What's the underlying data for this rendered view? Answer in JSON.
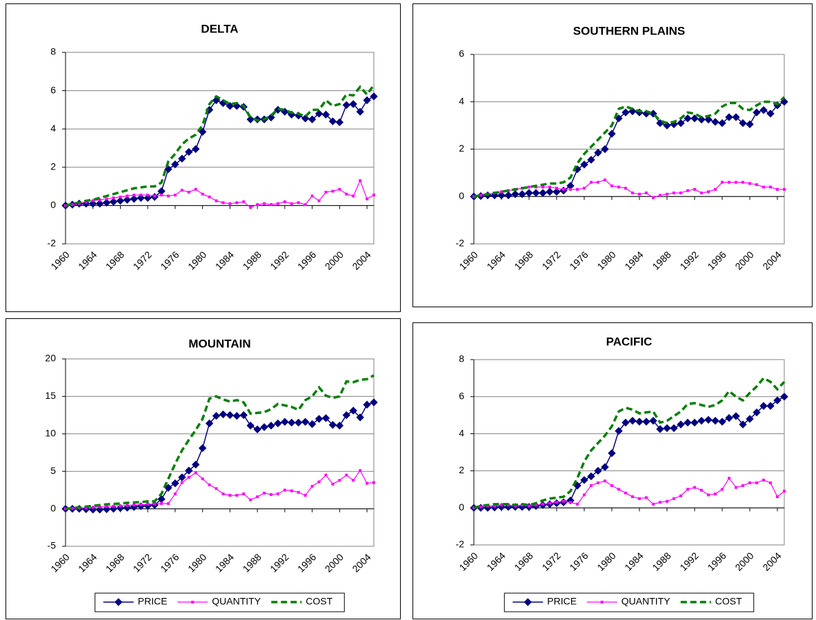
{
  "chart_data": [
    {
      "type": "line",
      "title": "DELTA",
      "x": [
        1960,
        1961,
        1962,
        1963,
        1964,
        1965,
        1966,
        1967,
        1968,
        1969,
        1970,
        1971,
        1972,
        1973,
        1974,
        1975,
        1976,
        1977,
        1978,
        1979,
        1980,
        1981,
        1982,
        1983,
        1984,
        1985,
        1986,
        1987,
        1988,
        1989,
        1990,
        1991,
        1992,
        1993,
        1994,
        1995,
        1996,
        1997,
        1998,
        1999,
        2000,
        2001,
        2002,
        2003,
        2004,
        2005
      ],
      "xlim": [
        1960,
        2005
      ],
      "xticks": [
        1960,
        1964,
        1968,
        1972,
        1976,
        1980,
        1984,
        1988,
        1992,
        1996,
        2000,
        2004
      ],
      "ylim": [
        -2,
        8
      ],
      "yticks": [
        -2,
        0,
        2,
        4,
        6,
        8
      ],
      "grid": true,
      "series": [
        {
          "name": "PRICE",
          "color": "#000080",
          "marker": "diamond",
          "values": [
            0,
            0.05,
            0.1,
            0.1,
            0.1,
            0.1,
            0.15,
            0.2,
            0.25,
            0.3,
            0.35,
            0.4,
            0.4,
            0.45,
            0.75,
            1.9,
            2.15,
            2.45,
            2.8,
            2.95,
            3.85,
            5.0,
            5.5,
            5.35,
            5.2,
            5.2,
            5.15,
            4.5,
            4.5,
            4.5,
            4.6,
            5.0,
            4.9,
            4.75,
            4.7,
            4.55,
            4.5,
            4.8,
            4.75,
            4.4,
            4.35,
            5.25,
            5.3,
            4.9,
            5.5,
            5.7
          ]
        },
        {
          "name": "QUANTITY",
          "color": "#ff00ff",
          "marker": "square",
          "values": [
            0,
            0.05,
            0.1,
            0.2,
            0.25,
            0.3,
            0.35,
            0.4,
            0.45,
            0.5,
            0.55,
            0.55,
            0.55,
            0.5,
            0.55,
            0.5,
            0.55,
            0.8,
            0.7,
            0.85,
            0.6,
            0.45,
            0.25,
            0.15,
            0.1,
            0.15,
            0.2,
            -0.1,
            0.05,
            0.1,
            0.05,
            0.1,
            0.2,
            0.1,
            0.15,
            0.05,
            0.5,
            0.25,
            0.7,
            0.75,
            0.85,
            0.6,
            0.5,
            1.3,
            0.35,
            0.55
          ]
        },
        {
          "name": "COST",
          "color": "#008000",
          "marker": "dash",
          "values": [
            0,
            0.1,
            0.15,
            0.25,
            0.3,
            0.4,
            0.5,
            0.6,
            0.7,
            0.8,
            0.9,
            0.95,
            1.0,
            1.0,
            1.2,
            2.3,
            2.7,
            3.2,
            3.5,
            3.7,
            4.2,
            5.3,
            5.7,
            5.5,
            5.3,
            5.35,
            5.2,
            4.6,
            4.45,
            4.5,
            4.7,
            5.05,
            5.0,
            4.85,
            4.8,
            4.65,
            5.0,
            5.0,
            5.5,
            5.2,
            5.3,
            5.8,
            5.75,
            6.2,
            5.8,
            6.3
          ]
        }
      ]
    },
    {
      "type": "line",
      "title": "SOUTHERN PLAINS",
      "x": [
        1960,
        1961,
        1962,
        1963,
        1964,
        1965,
        1966,
        1967,
        1968,
        1969,
        1970,
        1971,
        1972,
        1973,
        1974,
        1975,
        1976,
        1977,
        1978,
        1979,
        1980,
        1981,
        1982,
        1983,
        1984,
        1985,
        1986,
        1987,
        1988,
        1989,
        1990,
        1991,
        1992,
        1993,
        1994,
        1995,
        1996,
        1997,
        1998,
        1999,
        2000,
        2001,
        2002,
        2003,
        2004,
        2005
      ],
      "xlim": [
        1960,
        2005
      ],
      "xticks": [
        1960,
        1964,
        1968,
        1972,
        1976,
        1980,
        1984,
        1988,
        1992,
        1996,
        2000,
        2004
      ],
      "ylim": [
        -2,
        6
      ],
      "yticks": [
        -2,
        0,
        2,
        4,
        6
      ],
      "grid": true,
      "series": [
        {
          "name": "PRICE",
          "color": "#000080",
          "marker": "diamond",
          "values": [
            0,
            0.02,
            0.05,
            0.05,
            0.05,
            0.05,
            0.1,
            0.1,
            0.15,
            0.15,
            0.15,
            0.2,
            0.2,
            0.25,
            0.45,
            1.15,
            1.35,
            1.55,
            1.85,
            2.0,
            2.65,
            3.3,
            3.55,
            3.6,
            3.55,
            3.5,
            3.5,
            3.1,
            3.0,
            3.05,
            3.1,
            3.3,
            3.3,
            3.25,
            3.25,
            3.15,
            3.1,
            3.35,
            3.35,
            3.1,
            3.05,
            3.55,
            3.65,
            3.5,
            3.85,
            4.0
          ]
        },
        {
          "name": "QUANTITY",
          "color": "#ff00ff",
          "marker": "square",
          "values": [
            0,
            0.05,
            0.1,
            0.15,
            0.2,
            0.25,
            0.3,
            0.35,
            0.4,
            0.4,
            0.4,
            0.4,
            0.35,
            0.3,
            0.3,
            0.3,
            0.35,
            0.6,
            0.6,
            0.7,
            0.45,
            0.4,
            0.35,
            0.15,
            0.1,
            0.15,
            -0.05,
            0.05,
            0.1,
            0.15,
            0.15,
            0.25,
            0.3,
            0.15,
            0.2,
            0.3,
            0.6,
            0.6,
            0.6,
            0.6,
            0.55,
            0.5,
            0.4,
            0.4,
            0.3,
            0.3
          ]
        },
        {
          "name": "COST",
          "color": "#008000",
          "marker": "dash",
          "values": [
            0,
            0.05,
            0.1,
            0.15,
            0.2,
            0.25,
            0.3,
            0.35,
            0.4,
            0.45,
            0.5,
            0.55,
            0.55,
            0.6,
            0.8,
            1.4,
            1.8,
            2.1,
            2.4,
            2.7,
            3.0,
            3.7,
            3.8,
            3.7,
            3.6,
            3.6,
            3.5,
            3.2,
            3.1,
            3.15,
            3.3,
            3.55,
            3.5,
            3.35,
            3.4,
            3.5,
            3.8,
            3.95,
            3.95,
            3.7,
            3.65,
            3.85,
            4.0,
            4.0,
            3.9,
            4.2
          ]
        }
      ]
    },
    {
      "type": "line",
      "title": "MOUNTAIN",
      "x": [
        1960,
        1961,
        1962,
        1963,
        1964,
        1965,
        1966,
        1967,
        1968,
        1969,
        1970,
        1971,
        1972,
        1973,
        1974,
        1975,
        1976,
        1977,
        1978,
        1979,
        1980,
        1981,
        1982,
        1983,
        1984,
        1985,
        1986,
        1987,
        1988,
        1989,
        1990,
        1991,
        1992,
        1993,
        1994,
        1995,
        1996,
        1997,
        1998,
        1999,
        2000,
        2001,
        2002,
        2003,
        2004,
        2005
      ],
      "xlim": [
        1960,
        2005
      ],
      "xticks": [
        1960,
        1964,
        1968,
        1972,
        1976,
        1980,
        1984,
        1988,
        1992,
        1996,
        2000,
        2004
      ],
      "ylim": [
        -5,
        20
      ],
      "yticks": [
        -5,
        0,
        5,
        10,
        15,
        20
      ],
      "grid": true,
      "legend": "bottom",
      "series": [
        {
          "name": "PRICE",
          "color": "#000080",
          "marker": "diamond",
          "values": [
            0,
            0,
            0,
            -0.05,
            -0.1,
            -0.1,
            -0.05,
            0,
            0.1,
            0.15,
            0.25,
            0.35,
            0.4,
            0.5,
            1.3,
            2.8,
            3.4,
            4.2,
            5.1,
            5.9,
            8.1,
            11.4,
            12.4,
            12.6,
            12.5,
            12.4,
            12.5,
            11.1,
            10.6,
            10.9,
            11.1,
            11.4,
            11.6,
            11.5,
            11.5,
            11.6,
            11.3,
            12.0,
            12.1,
            11.2,
            11.1,
            12.5,
            13.1,
            12.2,
            13.9,
            14.2
          ]
        },
        {
          "name": "QUANTITY",
          "color": "#ff00ff",
          "marker": "square",
          "values": [
            0,
            0.05,
            0.1,
            0.15,
            0.2,
            0.25,
            0.3,
            0.35,
            0.4,
            0.45,
            0.5,
            0.55,
            0.6,
            0.65,
            0.7,
            0.7,
            2.0,
            3.5,
            4.2,
            4.8,
            4.0,
            3.2,
            2.7,
            2.0,
            1.8,
            1.8,
            2.0,
            1.2,
            1.6,
            2.1,
            1.9,
            2.0,
            2.5,
            2.4,
            2.2,
            1.8,
            3.0,
            3.6,
            4.5,
            3.3,
            3.8,
            4.5,
            3.8,
            5.1,
            3.4,
            3.5
          ]
        },
        {
          "name": "COST",
          "color": "#008000",
          "marker": "dash",
          "values": [
            0,
            0.1,
            0.2,
            0.3,
            0.4,
            0.5,
            0.6,
            0.65,
            0.7,
            0.8,
            0.85,
            0.9,
            1.0,
            1.0,
            2.0,
            4.0,
            6.0,
            7.8,
            9.2,
            10.5,
            12.0,
            14.7,
            15.0,
            14.6,
            14.3,
            14.5,
            14.2,
            12.7,
            12.8,
            12.9,
            13.3,
            14.0,
            13.8,
            13.6,
            13.2,
            14.5,
            15.0,
            16.2,
            15.1,
            14.8,
            15.0,
            17.0,
            16.9,
            17.2,
            17.3,
            17.8
          ]
        }
      ]
    },
    {
      "type": "line",
      "title": "PACIFIC",
      "x": [
        1960,
        1961,
        1962,
        1963,
        1964,
        1965,
        1966,
        1967,
        1968,
        1969,
        1970,
        1971,
        1972,
        1973,
        1974,
        1975,
        1976,
        1977,
        1978,
        1979,
        1980,
        1981,
        1982,
        1983,
        1984,
        1985,
        1986,
        1987,
        1988,
        1989,
        1990,
        1991,
        1992,
        1993,
        1994,
        1995,
        1996,
        1997,
        1998,
        1999,
        2000,
        2001,
        2002,
        2003,
        2004,
        2005
      ],
      "xlim": [
        1960,
        2005
      ],
      "xticks": [
        1960,
        1964,
        1968,
        1972,
        1976,
        1980,
        1984,
        1988,
        1992,
        1996,
        2000,
        2004
      ],
      "ylim": [
        -2,
        8
      ],
      "yticks": [
        -2,
        0,
        2,
        4,
        6,
        8
      ],
      "grid": true,
      "legend": "bottom",
      "series": [
        {
          "name": "PRICE",
          "color": "#000080",
          "marker": "diamond",
          "values": [
            0,
            0,
            0,
            0.02,
            0.05,
            0.05,
            0.05,
            0.05,
            0.05,
            0.1,
            0.15,
            0.2,
            0.25,
            0.3,
            0.4,
            1.2,
            1.5,
            1.7,
            2.0,
            2.2,
            2.95,
            4.15,
            4.6,
            4.7,
            4.65,
            4.65,
            4.7,
            4.25,
            4.3,
            4.3,
            4.5,
            4.6,
            4.6,
            4.7,
            4.75,
            4.7,
            4.65,
            4.85,
            4.95,
            4.5,
            4.8,
            5.15,
            5.5,
            5.5,
            5.8,
            6.0
          ]
        },
        {
          "name": "QUANTITY",
          "color": "#ff00ff",
          "marker": "square",
          "values": [
            0,
            0.05,
            0.1,
            0.1,
            0.15,
            0.15,
            0.1,
            0.15,
            0.1,
            0.15,
            0.2,
            0.25,
            0.3,
            0.35,
            0.3,
            0.2,
            0.7,
            1.2,
            1.35,
            1.45,
            1.2,
            1.0,
            0.8,
            0.6,
            0.5,
            0.55,
            0.2,
            0.3,
            0.35,
            0.5,
            0.65,
            1.0,
            1.1,
            0.95,
            0.7,
            0.75,
            1.0,
            1.6,
            1.1,
            1.2,
            1.35,
            1.35,
            1.5,
            1.35,
            0.6,
            0.9
          ]
        },
        {
          "name": "COST",
          "color": "#008000",
          "marker": "dash",
          "values": [
            0,
            0.1,
            0.15,
            0.2,
            0.2,
            0.2,
            0.15,
            0.2,
            0.15,
            0.25,
            0.4,
            0.5,
            0.55,
            0.6,
            0.9,
            1.6,
            2.5,
            3.1,
            3.5,
            3.9,
            4.4,
            5.2,
            5.4,
            5.3,
            5.1,
            5.15,
            5.2,
            4.6,
            4.7,
            4.95,
            5.2,
            5.6,
            5.65,
            5.55,
            5.45,
            5.55,
            5.8,
            6.3,
            6.0,
            5.8,
            6.2,
            6.55,
            7.0,
            6.8,
            6.4,
            6.8
          ]
        }
      ]
    }
  ]
}
